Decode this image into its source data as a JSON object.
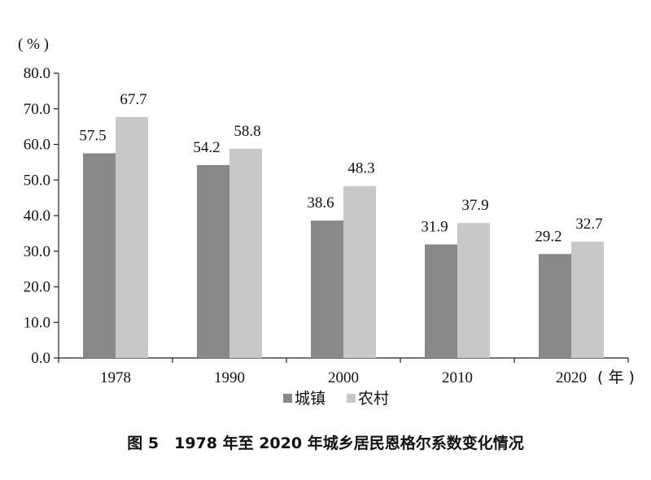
{
  "chart_data": {
    "type": "bar",
    "title": "图 5　1978 年至 2020 年城乡居民恩格尔系数变化情况",
    "ylabel": "( % )",
    "xlabel": "( 年 )",
    "categories": [
      "1978",
      "1990",
      "2000",
      "2010",
      "2020"
    ],
    "series": [
      {
        "name": "城镇",
        "values": [
          57.5,
          54.2,
          38.6,
          31.9,
          29.2
        ],
        "color": "#888888"
      },
      {
        "name": "农村",
        "values": [
          67.7,
          58.8,
          48.3,
          37.9,
          32.7
        ],
        "color": "#c8c8c8"
      }
    ],
    "ylim": [
      0,
      80
    ],
    "yticks": [
      "0.0",
      "10.0",
      "20.0",
      "30.0",
      "40.0",
      "50.0",
      "60.0",
      "70.0",
      "80.0"
    ],
    "grid": false,
    "legend": "bottom"
  }
}
